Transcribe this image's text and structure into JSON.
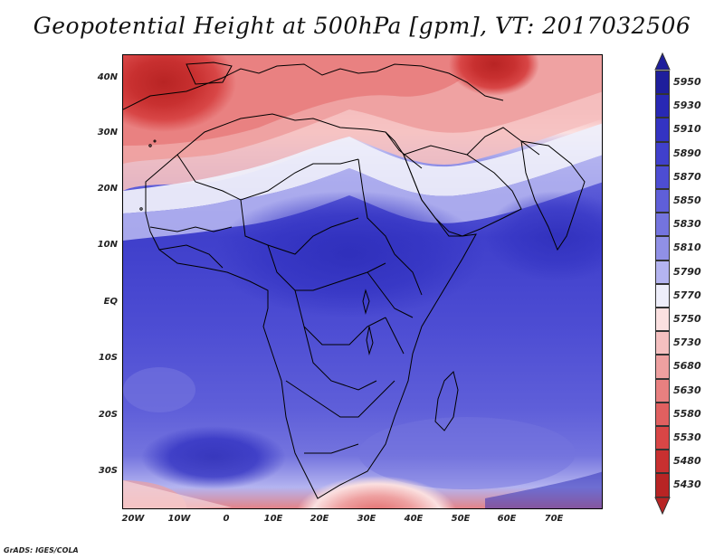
{
  "title": "Geopotential Height at 500hPa [gpm], VT: 2017032506",
  "credit": "GrADS: IGES/COLA",
  "map": {
    "lon_range": [
      -23,
      80
    ],
    "lat_range": [
      -37,
      45
    ],
    "y_axis_labels": [
      "40N",
      "30N",
      "20N",
      "10N",
      "EQ",
      "10S",
      "20S",
      "30S"
    ],
    "y_axis_values": [
      40,
      30,
      20,
      10,
      0,
      -10,
      -20,
      -30
    ],
    "x_axis_labels": [
      "20W",
      "10W",
      "0",
      "10E",
      "20E",
      "30E",
      "40E",
      "50E",
      "60E",
      "70E"
    ],
    "x_axis_values": [
      -20,
      -10,
      0,
      10,
      20,
      30,
      40,
      50,
      60,
      70
    ]
  },
  "colorbar": {
    "levels": [
      "5950",
      "5930",
      "5910",
      "5890",
      "5870",
      "5850",
      "5830",
      "5810",
      "5790",
      "5770",
      "5750",
      "5730",
      "5680",
      "5630",
      "5580",
      "5530",
      "5480",
      "5430"
    ],
    "colors": [
      "#1e1e9c",
      "#2828b4",
      "#3333c2",
      "#4040cc",
      "#4d4dd3",
      "#5f5fd9",
      "#7474de",
      "#9090e6",
      "#b4b4f0",
      "#eeeefa",
      "#fbe0e0",
      "#f5c0c0",
      "#eea0a0",
      "#e88080",
      "#e06060",
      "#d84646",
      "#c83030",
      "#b82424"
    ]
  }
}
